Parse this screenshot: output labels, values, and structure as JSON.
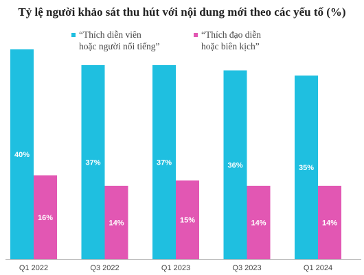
{
  "chart_data": {
    "type": "bar",
    "title": "Tỷ lệ người khảo sát thu hút với nội dung mới theo các yếu tố (%)",
    "categories": [
      "Q1 2022",
      "Q3 2022",
      "Q1 2023",
      "Q3 2023",
      "Q1 2024"
    ],
    "series": [
      {
        "name": "“Thích diễn viên\nhoặc người nổi tiếng”",
        "color": "#1fbfe0",
        "values": [
          40,
          37,
          37,
          36,
          35
        ],
        "labels": [
          "40%",
          "37%",
          "37%",
          "36%",
          "35%"
        ]
      },
      {
        "name": "“Thích đạo diễn\nhoặc biên kịch”",
        "color": "#e257b3",
        "values": [
          16,
          14,
          15,
          14,
          14
        ],
        "labels": [
          "16%",
          "14%",
          "15%",
          "14%",
          "14%"
        ]
      }
    ],
    "ylim": [
      0,
      40
    ],
    "grid": false,
    "legend_position": "top"
  }
}
